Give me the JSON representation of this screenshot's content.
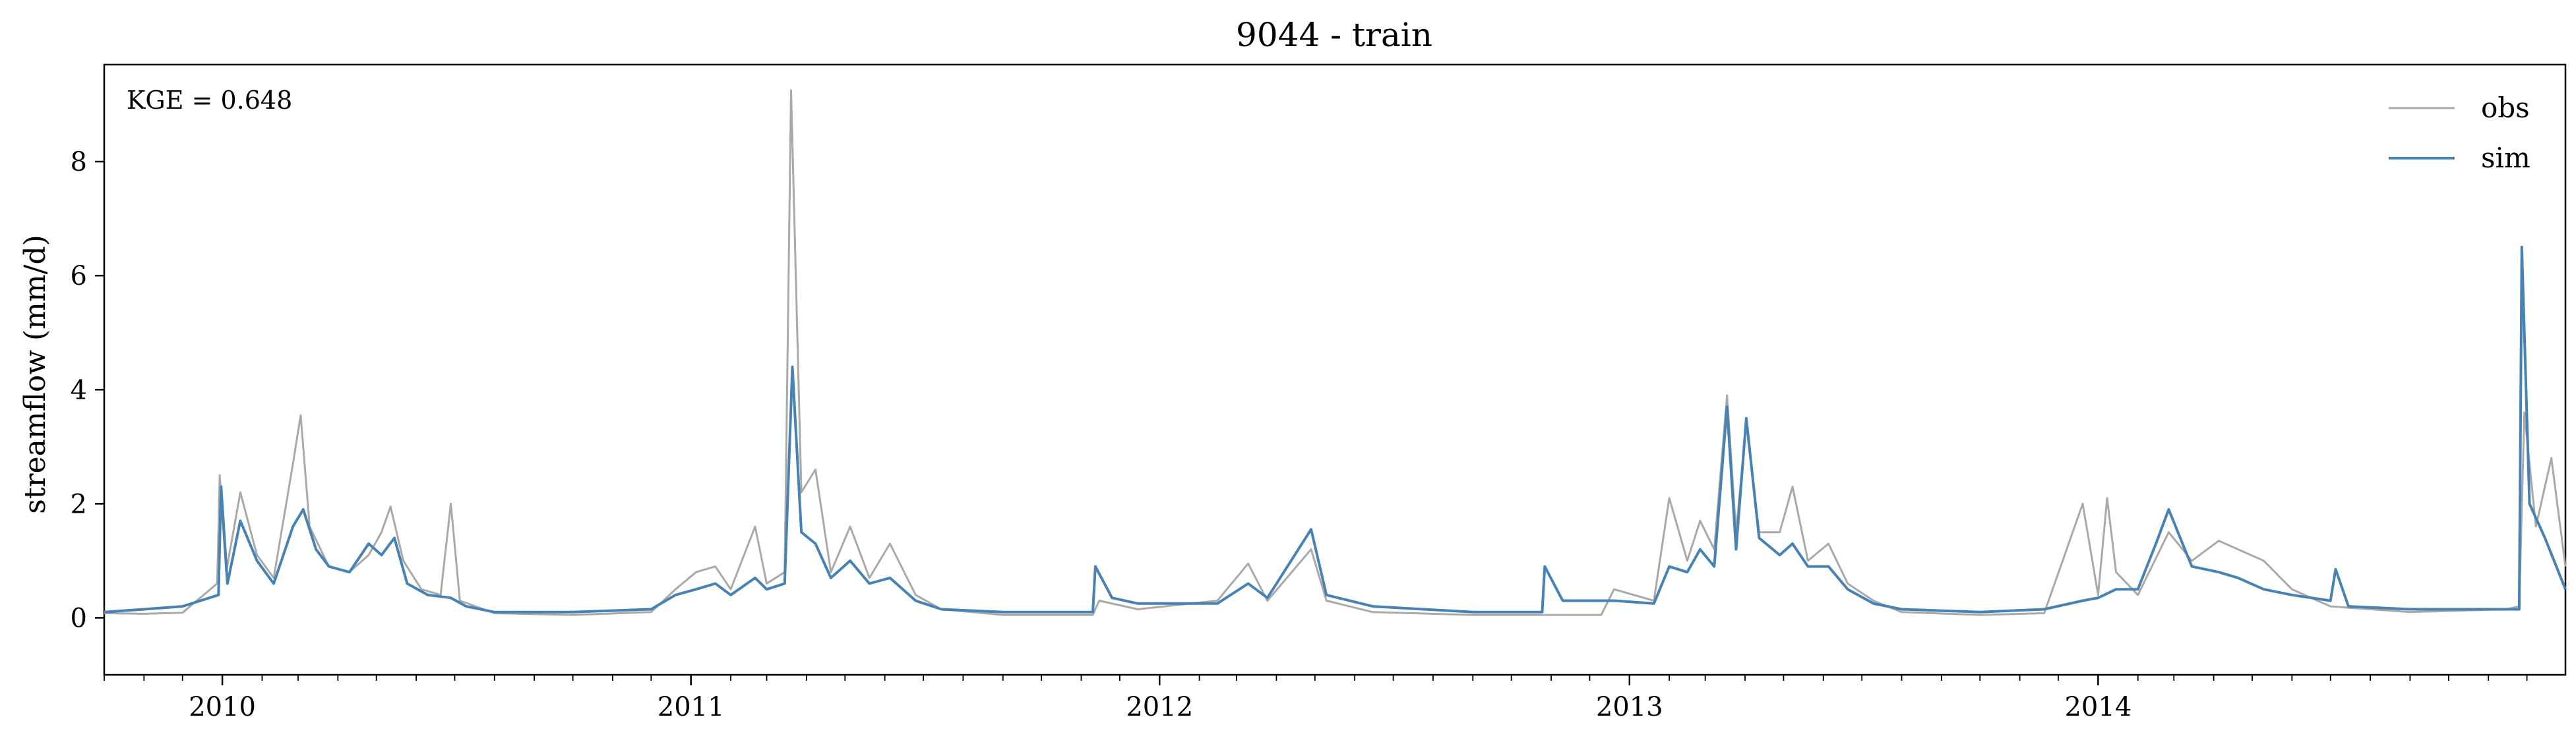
{
  "chart_data": {
    "type": "line",
    "title": "9044 - train",
    "xlabel": "",
    "ylabel": "streamflow (mm/d)",
    "annotation": "KGE = 0.648",
    "legend_position": "top-right",
    "grid": false,
    "x_range": [
      "2009-10-01",
      "2014-12-31"
    ],
    "ylim": [
      -1,
      9.7
    ],
    "yticks": [
      0,
      2,
      4,
      6,
      8
    ],
    "ytick_labels": [
      "0",
      "2",
      "4",
      "6",
      "8"
    ],
    "xticks": [
      "2010-01-01",
      "2011-01-01",
      "2012-01-01",
      "2013-01-01",
      "2014-01-01"
    ],
    "xtick_labels": [
      "2010",
      "2011",
      "2012",
      "2013",
      "2014"
    ],
    "series": [
      {
        "name": "obs",
        "color": "#a9a9a9",
        "points": [
          [
            "2009-10-01",
            0.08
          ],
          [
            "2009-11-01",
            0.07
          ],
          [
            "2009-12-01",
            0.09
          ],
          [
            "2009-12-28",
            0.6
          ],
          [
            "2009-12-30",
            2.5
          ],
          [
            "2010-01-04",
            0.8
          ],
          [
            "2010-01-15",
            2.2
          ],
          [
            "2010-01-28",
            1.1
          ],
          [
            "2010-02-10",
            0.7
          ],
          [
            "2010-02-25",
            2.7
          ],
          [
            "2010-03-03",
            3.55
          ],
          [
            "2010-03-10",
            1.6
          ],
          [
            "2010-03-25",
            0.9
          ],
          [
            "2010-04-10",
            0.8
          ],
          [
            "2010-04-25",
            1.1
          ],
          [
            "2010-05-05",
            1.5
          ],
          [
            "2010-05-12",
            1.95
          ],
          [
            "2010-05-22",
            1.0
          ],
          [
            "2010-06-05",
            0.5
          ],
          [
            "2010-06-20",
            0.4
          ],
          [
            "2010-06-28",
            2.0
          ],
          [
            "2010-07-05",
            0.3
          ],
          [
            "2010-08-01",
            0.08
          ],
          [
            "2010-10-01",
            0.05
          ],
          [
            "2010-12-01",
            0.1
          ],
          [
            "2010-12-20",
            0.5
          ],
          [
            "2011-01-05",
            0.8
          ],
          [
            "2011-01-20",
            0.9
          ],
          [
            "2011-02-01",
            0.5
          ],
          [
            "2011-02-20",
            1.6
          ],
          [
            "2011-03-01",
            0.6
          ],
          [
            "2011-03-15",
            0.8
          ],
          [
            "2011-03-20",
            9.25
          ],
          [
            "2011-03-28",
            2.2
          ],
          [
            "2011-04-08",
            2.6
          ],
          [
            "2011-04-20",
            0.8
          ],
          [
            "2011-05-05",
            1.6
          ],
          [
            "2011-05-20",
            0.7
          ],
          [
            "2011-06-05",
            1.3
          ],
          [
            "2011-06-25",
            0.4
          ],
          [
            "2011-07-15",
            0.15
          ],
          [
            "2011-09-01",
            0.05
          ],
          [
            "2011-11-10",
            0.05
          ],
          [
            "2011-11-15",
            0.3
          ],
          [
            "2011-12-15",
            0.15
          ],
          [
            "2012-02-15",
            0.3
          ],
          [
            "2012-03-10",
            0.95
          ],
          [
            "2012-03-25",
            0.3
          ],
          [
            "2012-04-28",
            1.2
          ],
          [
            "2012-05-10",
            0.3
          ],
          [
            "2012-06-15",
            0.1
          ],
          [
            "2012-09-01",
            0.05
          ],
          [
            "2012-12-10",
            0.05
          ],
          [
            "2012-12-20",
            0.5
          ],
          [
            "2013-01-20",
            0.3
          ],
          [
            "2013-02-01",
            2.1
          ],
          [
            "2013-02-15",
            1.0
          ],
          [
            "2013-02-25",
            1.7
          ],
          [
            "2013-03-08",
            1.2
          ],
          [
            "2013-03-18",
            3.9
          ],
          [
            "2013-03-25",
            1.5
          ],
          [
            "2013-04-02",
            3.4
          ],
          [
            "2013-04-12",
            1.5
          ],
          [
            "2013-04-28",
            1.5
          ],
          [
            "2013-05-08",
            2.3
          ],
          [
            "2013-05-20",
            1.0
          ],
          [
            "2013-06-05",
            1.3
          ],
          [
            "2013-06-20",
            0.6
          ],
          [
            "2013-07-10",
            0.3
          ],
          [
            "2013-08-01",
            0.1
          ],
          [
            "2013-10-01",
            0.05
          ],
          [
            "2013-11-20",
            0.08
          ],
          [
            "2013-12-20",
            2.0
          ],
          [
            "2014-01-01",
            0.4
          ],
          [
            "2014-01-08",
            2.1
          ],
          [
            "2014-01-15",
            0.8
          ],
          [
            "2014-02-01",
            0.4
          ],
          [
            "2014-02-25",
            1.5
          ],
          [
            "2014-03-15",
            1.0
          ],
          [
            "2014-04-05",
            1.35
          ],
          [
            "2014-04-20",
            1.2
          ],
          [
            "2014-05-10",
            1.0
          ],
          [
            "2014-06-01",
            0.5
          ],
          [
            "2014-07-01",
            0.2
          ],
          [
            "2014-09-01",
            0.1
          ],
          [
            "2014-11-15",
            0.15
          ],
          [
            "2014-11-25",
            0.2
          ],
          [
            "2014-11-29",
            3.6
          ],
          [
            "2014-12-08",
            1.6
          ],
          [
            "2014-12-20",
            2.8
          ],
          [
            "2014-12-31",
            0.9
          ]
        ]
      },
      {
        "name": "sim",
        "color": "#4682b4",
        "points": [
          [
            "2009-10-01",
            0.1
          ],
          [
            "2009-11-01",
            0.15
          ],
          [
            "2009-12-01",
            0.2
          ],
          [
            "2009-12-29",
            0.4
          ],
          [
            "2009-12-31",
            2.3
          ],
          [
            "2010-01-05",
            0.6
          ],
          [
            "2010-01-15",
            1.7
          ],
          [
            "2010-01-28",
            1.0
          ],
          [
            "2010-02-10",
            0.6
          ],
          [
            "2010-02-25",
            1.6
          ],
          [
            "2010-03-05",
            1.9
          ],
          [
            "2010-03-15",
            1.2
          ],
          [
            "2010-03-25",
            0.9
          ],
          [
            "2010-04-10",
            0.8
          ],
          [
            "2010-04-25",
            1.3
          ],
          [
            "2010-05-05",
            1.1
          ],
          [
            "2010-05-15",
            1.4
          ],
          [
            "2010-05-25",
            0.6
          ],
          [
            "2010-06-10",
            0.4
          ],
          [
            "2010-06-28",
            0.35
          ],
          [
            "2010-07-10",
            0.2
          ],
          [
            "2010-08-01",
            0.1
          ],
          [
            "2010-10-01",
            0.1
          ],
          [
            "2010-12-01",
            0.15
          ],
          [
            "2010-12-20",
            0.4
          ],
          [
            "2011-01-05",
            0.5
          ],
          [
            "2011-01-20",
            0.6
          ],
          [
            "2011-02-01",
            0.4
          ],
          [
            "2011-02-20",
            0.7
          ],
          [
            "2011-03-01",
            0.5
          ],
          [
            "2011-03-15",
            0.6
          ],
          [
            "2011-03-21",
            4.4
          ],
          [
            "2011-03-28",
            1.5
          ],
          [
            "2011-04-08",
            1.3
          ],
          [
            "2011-04-20",
            0.7
          ],
          [
            "2011-05-05",
            1.0
          ],
          [
            "2011-05-20",
            0.6
          ],
          [
            "2011-06-05",
            0.7
          ],
          [
            "2011-06-25",
            0.3
          ],
          [
            "2011-07-15",
            0.15
          ],
          [
            "2011-09-01",
            0.1
          ],
          [
            "2011-11-10",
            0.1
          ],
          [
            "2011-11-12",
            0.9
          ],
          [
            "2011-11-25",
            0.35
          ],
          [
            "2011-12-15",
            0.25
          ],
          [
            "2012-02-15",
            0.25
          ],
          [
            "2012-03-10",
            0.6
          ],
          [
            "2012-03-25",
            0.35
          ],
          [
            "2012-04-28",
            1.55
          ],
          [
            "2012-05-10",
            0.4
          ],
          [
            "2012-06-15",
            0.2
          ],
          [
            "2012-09-01",
            0.1
          ],
          [
            "2012-10-25",
            0.1
          ],
          [
            "2012-10-27",
            0.9
          ],
          [
            "2012-11-10",
            0.3
          ],
          [
            "2012-12-20",
            0.3
          ],
          [
            "2013-01-20",
            0.25
          ],
          [
            "2013-02-01",
            0.9
          ],
          [
            "2013-02-15",
            0.8
          ],
          [
            "2013-02-25",
            1.2
          ],
          [
            "2013-03-08",
            0.9
          ],
          [
            "2013-03-18",
            3.7
          ],
          [
            "2013-03-25",
            1.2
          ],
          [
            "2013-04-02",
            3.5
          ],
          [
            "2013-04-12",
            1.4
          ],
          [
            "2013-04-28",
            1.1
          ],
          [
            "2013-05-08",
            1.3
          ],
          [
            "2013-05-20",
            0.9
          ],
          [
            "2013-06-05",
            0.9
          ],
          [
            "2013-06-20",
            0.5
          ],
          [
            "2013-07-10",
            0.25
          ],
          [
            "2013-08-01",
            0.15
          ],
          [
            "2013-10-01",
            0.1
          ],
          [
            "2013-11-20",
            0.15
          ],
          [
            "2013-12-20",
            0.3
          ],
          [
            "2014-01-01",
            0.35
          ],
          [
            "2014-01-15",
            0.5
          ],
          [
            "2014-02-01",
            0.5
          ],
          [
            "2014-02-15",
            1.3
          ],
          [
            "2014-02-25",
            1.9
          ],
          [
            "2014-03-15",
            0.9
          ],
          [
            "2014-04-05",
            0.8
          ],
          [
            "2014-04-20",
            0.7
          ],
          [
            "2014-05-10",
            0.5
          ],
          [
            "2014-06-01",
            0.4
          ],
          [
            "2014-07-01",
            0.3
          ],
          [
            "2014-07-05",
            0.85
          ],
          [
            "2014-07-15",
            0.2
          ],
          [
            "2014-09-01",
            0.15
          ],
          [
            "2014-11-25",
            0.15
          ],
          [
            "2014-11-27",
            6.5
          ],
          [
            "2014-12-03",
            2.0
          ],
          [
            "2014-12-15",
            1.4
          ],
          [
            "2014-12-31",
            0.5
          ]
        ]
      }
    ]
  }
}
